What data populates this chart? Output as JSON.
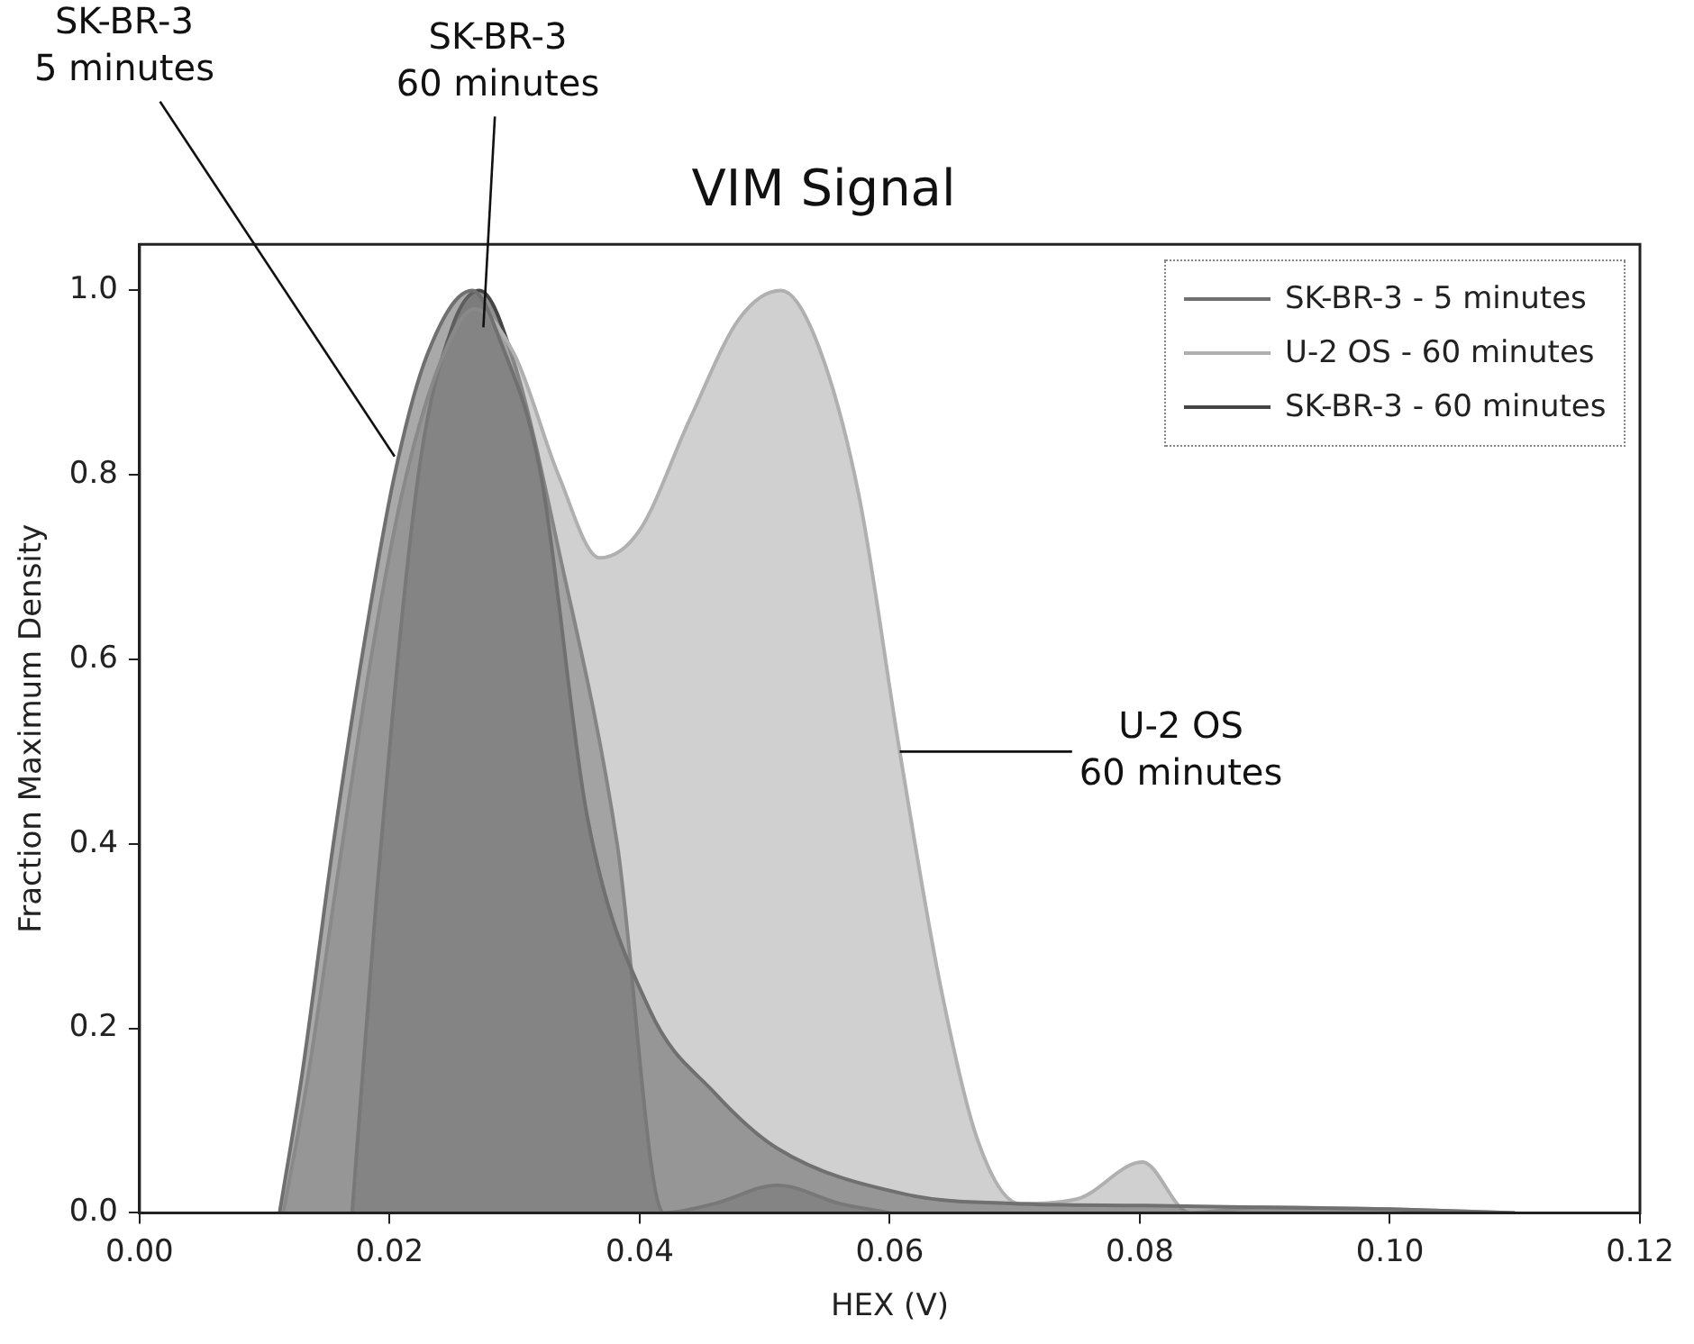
{
  "chart_data": {
    "type": "area",
    "title": "VIM Signal",
    "xlabel": "HEX (V)",
    "ylabel": "Fraction Maximum Density",
    "xlim": [
      0,
      0.12
    ],
    "ylim": [
      0,
      1.05
    ],
    "xticks": [
      {
        "value": 0,
        "label": "0.00"
      },
      {
        "value": 0.02,
        "label": "0.02"
      },
      {
        "value": 0.04,
        "label": "0.04"
      },
      {
        "value": 0.06,
        "label": "0.06"
      },
      {
        "value": 0.08,
        "label": "0.08"
      },
      {
        "value": 0.1,
        "label": "0.10"
      },
      {
        "value": 0.12,
        "label": "0.12"
      }
    ],
    "yticks": [
      {
        "value": 0,
        "label": "0.0"
      },
      {
        "value": 0.2,
        "label": "0.2"
      },
      {
        "value": 0.4,
        "label": "0.4"
      },
      {
        "value": 0.6,
        "label": "0.6"
      },
      {
        "value": 0.8,
        "label": "0.8"
      },
      {
        "value": 1,
        "label": "1.0"
      }
    ],
    "grid": false,
    "legend": "top right",
    "marker": "none",
    "line_style": "solid",
    "series": [
      {
        "name": "SK-BR-3 - 5 minutes",
        "color": "#707070",
        "x": [
          0.0112,
          0.013,
          0.0155,
          0.018,
          0.0204,
          0.023,
          0.0266,
          0.029,
          0.0321,
          0.0358,
          0.0408,
          0.046,
          0.051,
          0.0613,
          0.07,
          0.08,
          0.09,
          0.1,
          0.11
        ],
        "values": [
          0,
          0.15,
          0.4,
          0.62,
          0.8,
          0.93,
          1.0,
          0.94,
          0.8,
          0.43,
          0.22,
          0.13,
          0.07,
          0.02,
          0.01,
          0.008,
          0.006,
          0.004,
          0
        ]
      },
      {
        "name": "U-2 OS - 60 minutes",
        "color": "#b0b0b0",
        "x": [
          0.0115,
          0.0135,
          0.016,
          0.0185,
          0.021,
          0.024,
          0.0268,
          0.03,
          0.0335,
          0.0368,
          0.04,
          0.044,
          0.048,
          0.0513,
          0.054,
          0.0575,
          0.0608,
          0.064,
          0.067,
          0.0704,
          0.075,
          0.0802,
          0.084,
          0.09,
          0.1,
          0.11
        ],
        "values": [
          0,
          0.15,
          0.38,
          0.6,
          0.78,
          0.92,
          0.98,
          0.93,
          0.8,
          0.71,
          0.74,
          0.86,
          0.97,
          1.0,
          0.95,
          0.78,
          0.5,
          0.25,
          0.08,
          0.01,
          0.015,
          0.055,
          0,
          0.006,
          0.004,
          0
        ]
      },
      {
        "name": "SK-BR-3 - 60 minutes",
        "color": "#454545",
        "x": [
          0.017,
          0.019,
          0.0223,
          0.025,
          0.0272,
          0.03,
          0.0335,
          0.0382,
          0.0419,
          0.046,
          0.051,
          0.056,
          0.06
        ],
        "values": [
          0,
          0.35,
          0.8,
          0.96,
          1.0,
          0.92,
          0.72,
          0.4,
          0,
          0.01,
          0.03,
          0.01,
          0
        ]
      }
    ],
    "annotations": [
      {
        "text": "SK-BR-3\n5 minutes",
        "x": 0.0204,
        "y": 0.82
      },
      {
        "text": "SK-BR-3\n60 minutes",
        "x": 0.0275,
        "y": 0.96
      },
      {
        "text": "U-2 OS\n60 minutes",
        "x": 0.0608,
        "y": 0.5
      }
    ]
  }
}
